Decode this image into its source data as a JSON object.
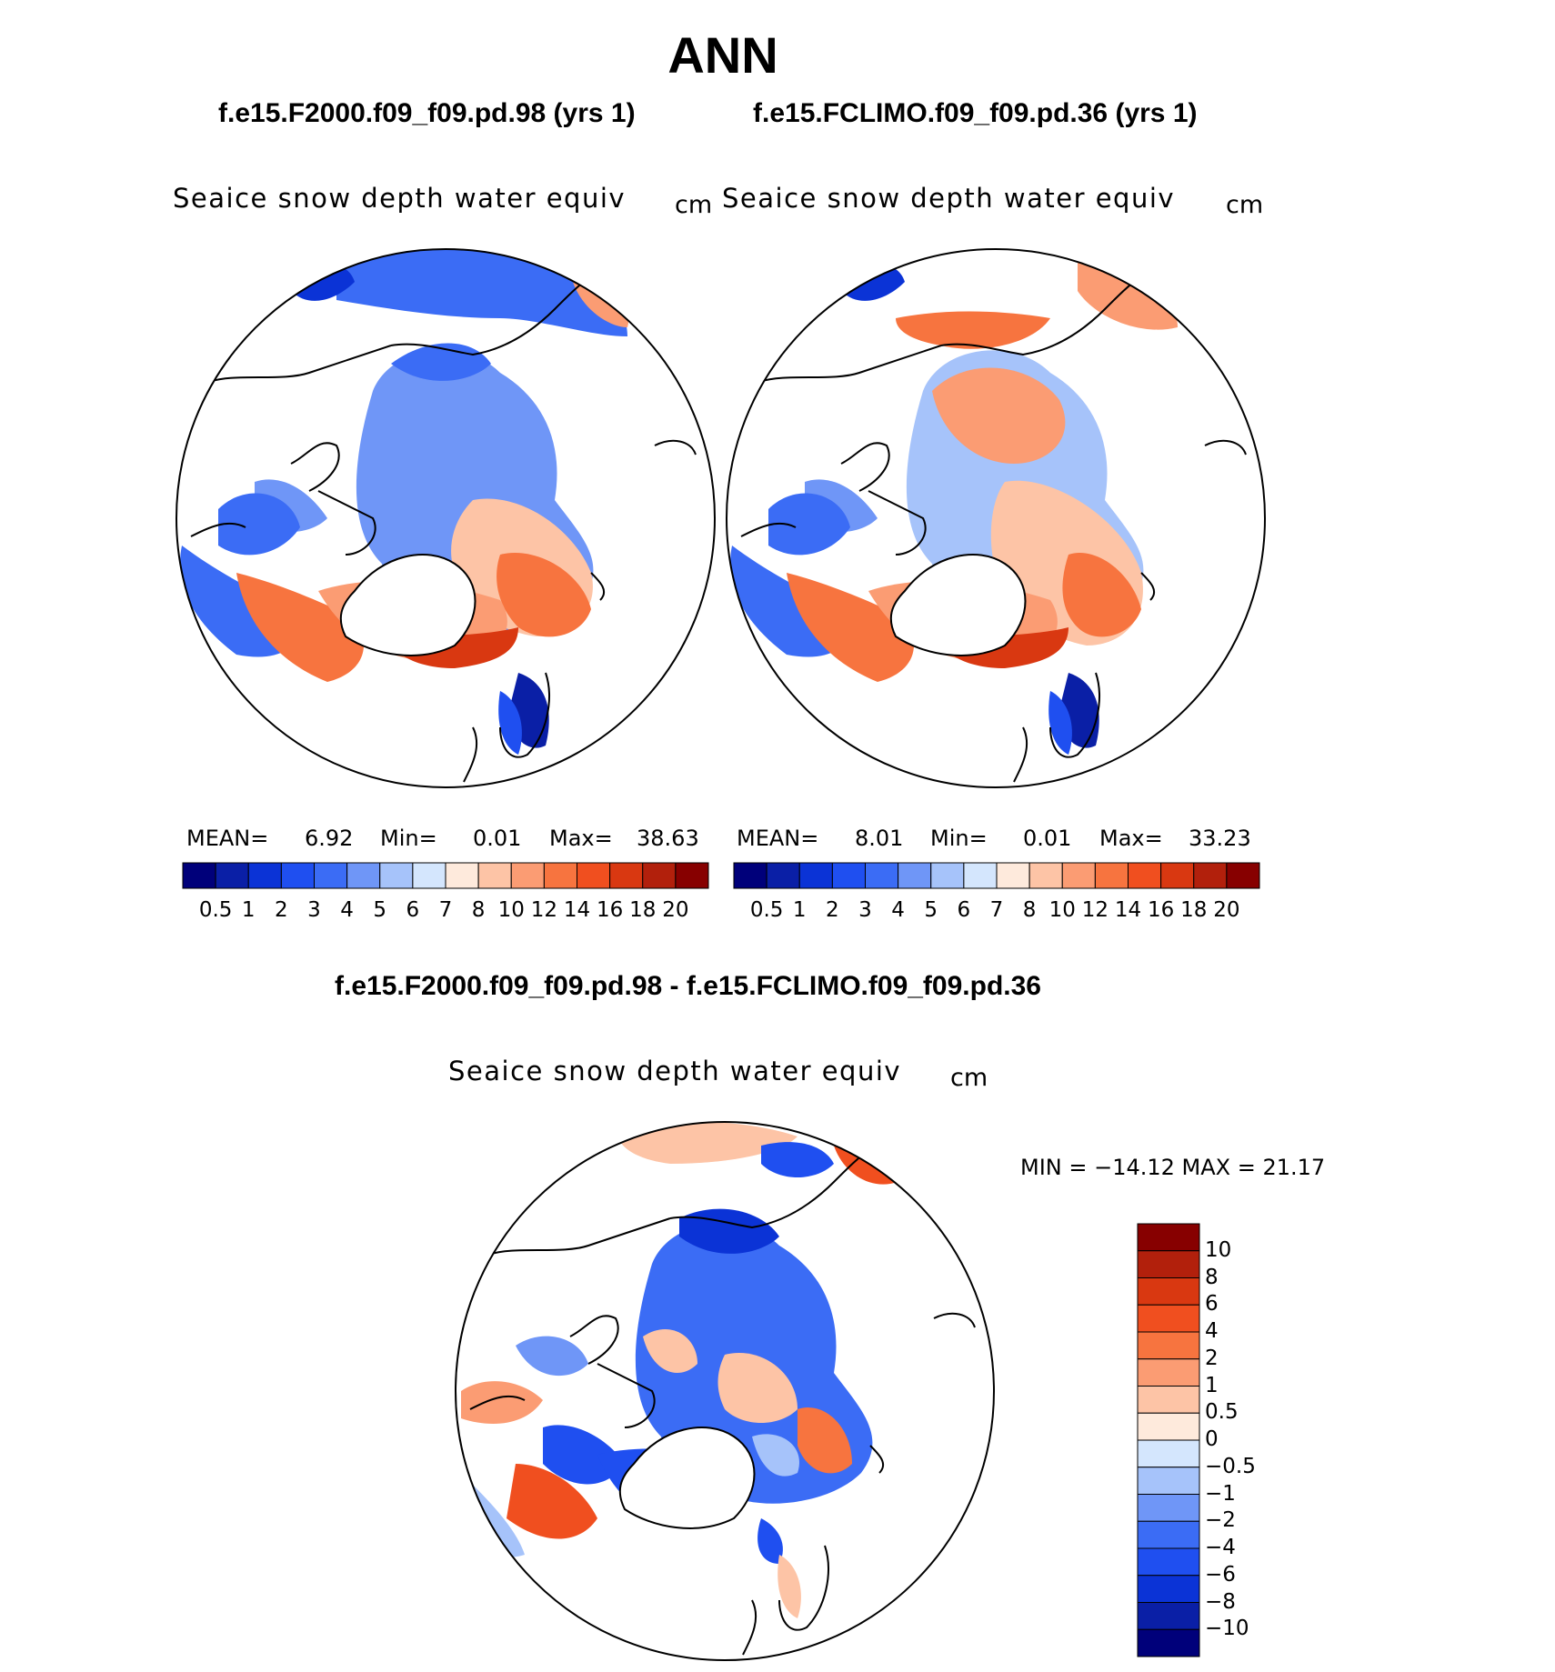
{
  "main_title": "ANN",
  "panels": [
    {
      "case_title": "f.e15.F2000.f09_f09.pd.98 (yrs 1)",
      "var_label": "Seaice snow depth water equiv",
      "unit": "cm",
      "mean_label": "MEAN=",
      "mean_value": "6.92",
      "min_label": "Min=",
      "min_value": "0.01",
      "max_label": "Max=",
      "max_value": "38.63"
    },
    {
      "case_title": "f.e15.FCLIMO.f09_f09.pd.36 (yrs 1)",
      "var_label": "Seaice snow depth water equiv",
      "unit": "cm",
      "mean_label": "MEAN=",
      "mean_value": "8.01",
      "min_label": "Min=",
      "min_value": "0.01",
      "max_label": "Max=",
      "max_value": "33.23"
    }
  ],
  "diff_panel": {
    "case_title": "f.e15.F2000.f09_f09.pd.98 - f.e15.FCLIMO.f09_f09.pd.36",
    "var_label": "Seaice snow depth water equiv",
    "unit": "cm",
    "minmax_text": "MIN = −14.12 MAX =   21.17"
  },
  "colorbar_abs": {
    "ticks": [
      "0.5",
      "1",
      "2",
      "3",
      "4",
      "5",
      "6",
      "7",
      "8",
      "10",
      "12",
      "14",
      "16",
      "18",
      "20"
    ],
    "colors": [
      "#00007a",
      "#0a1fa6",
      "#0b33d6",
      "#1f4ff0",
      "#3b6cf5",
      "#6f96f7",
      "#a6c3fa",
      "#d4e6fd",
      "#feeadc",
      "#fdc4a6",
      "#fb9c73",
      "#f7743f",
      "#f04f1f",
      "#d93811",
      "#b2200c",
      "#870000"
    ]
  },
  "colorbar_diff": {
    "ticks": [
      "10",
      "8",
      "6",
      "4",
      "2",
      "1",
      "0.5",
      "0",
      "−0.5",
      "−1",
      "−2",
      "−4",
      "−6",
      "−8",
      "−10"
    ],
    "colors": [
      "#870000",
      "#b2200c",
      "#d93811",
      "#f04f1f",
      "#f7743f",
      "#fb9c73",
      "#fdc4a6",
      "#feeadc",
      "#d4e6fd",
      "#a6c3fa",
      "#6f96f7",
      "#3b6cf5",
      "#1f4ff0",
      "#0b33d6",
      "#0a1fa6",
      "#00007a"
    ]
  }
}
